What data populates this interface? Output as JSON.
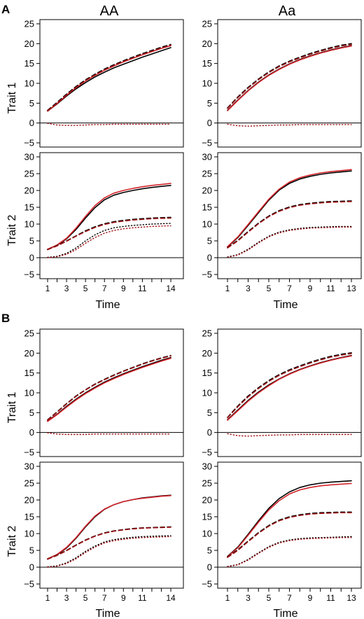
{
  "panel_labels": [
    "A",
    "B"
  ],
  "column_titles": [
    "AA",
    "Aa"
  ],
  "row_labels": [
    "Trait 1",
    "Trait 2"
  ],
  "xlabel": "Time",
  "colors": {
    "black": "#000000",
    "red": "#d2232a",
    "darkred": "#a01014",
    "axis": "#000000"
  },
  "chart_data": [
    {
      "type": "line",
      "panel": "A",
      "column": "AA",
      "trait": "Trait 1",
      "ylim": [
        -5,
        25
      ],
      "yticks": [
        -5,
        0,
        5,
        10,
        15,
        20,
        25
      ],
      "x": [
        1,
        2,
        3,
        4,
        5,
        6,
        7,
        8,
        9,
        10,
        11,
        12,
        13,
        14
      ],
      "xtick_labels": [],
      "series": [
        {
          "style": "solid",
          "color": "black",
          "values": [
            3,
            4.8,
            6.8,
            8.6,
            10.2,
            11.6,
            12.8,
            13.9,
            14.8,
            15.7,
            16.6,
            17.4,
            18.2,
            19.0
          ]
        },
        {
          "style": "solid",
          "color": "red",
          "values": [
            3,
            4.9,
            7.0,
            8.9,
            10.6,
            12.0,
            13.3,
            14.4,
            15.4,
            16.3,
            17.2,
            18.0,
            18.8,
            19.5
          ]
        },
        {
          "style": "dashed",
          "color": "black",
          "values": [
            3.2,
            5.2,
            7.3,
            9.2,
            10.9,
            12.3,
            13.6,
            14.7,
            15.7,
            16.6,
            17.5,
            18.3,
            19.1,
            19.8
          ]
        },
        {
          "style": "dashed",
          "color": "darkred",
          "values": [
            3.1,
            5.0,
            7.1,
            9.0,
            10.7,
            12.1,
            13.4,
            14.5,
            15.5,
            16.4,
            17.3,
            18.1,
            18.9,
            19.6
          ]
        },
        {
          "style": "dotted",
          "color": "darkred",
          "values": [
            -0.1,
            -0.5,
            -0.6,
            -0.6,
            -0.5,
            -0.4,
            -0.4,
            -0.3,
            -0.3,
            -0.3,
            -0.3,
            -0.3,
            -0.3,
            -0.3
          ]
        }
      ]
    },
    {
      "type": "line",
      "panel": "A",
      "column": "Aa",
      "trait": "Trait 1",
      "ylim": [
        -5,
        25
      ],
      "yticks": [
        -5,
        0,
        5,
        10,
        15,
        20,
        25
      ],
      "x": [
        1,
        2,
        3,
        4,
        5,
        6,
        7,
        8,
        9,
        10,
        11,
        12,
        13
      ],
      "xtick_labels": [],
      "series": [
        {
          "style": "solid",
          "color": "black",
          "values": [
            3.2,
            5.8,
            8.2,
            10.3,
            12.1,
            13.6,
            14.9,
            16.0,
            16.9,
            17.7,
            18.4,
            19.0,
            19.5
          ]
        },
        {
          "style": "solid",
          "color": "red",
          "values": [
            3.1,
            5.7,
            8.1,
            10.2,
            12.0,
            13.5,
            14.8,
            15.9,
            16.8,
            17.6,
            18.3,
            18.9,
            19.4
          ]
        },
        {
          "style": "dashed",
          "color": "black",
          "values": [
            3.8,
            6.6,
            9.0,
            11.1,
            12.9,
            14.4,
            15.6,
            16.6,
            17.5,
            18.3,
            19.0,
            19.6,
            20.0
          ]
        },
        {
          "style": "dashed",
          "color": "darkred",
          "values": [
            3.7,
            6.4,
            8.8,
            10.9,
            12.7,
            14.2,
            15.4,
            16.4,
            17.3,
            18.1,
            18.8,
            19.4,
            19.8
          ]
        },
        {
          "style": "dotted",
          "color": "darkred",
          "values": [
            -0.3,
            -0.7,
            -0.8,
            -0.7,
            -0.6,
            -0.5,
            -0.5,
            -0.4,
            -0.4,
            -0.4,
            -0.4,
            -0.4,
            -0.4
          ]
        }
      ]
    },
    {
      "type": "line",
      "panel": "A",
      "column": "AA",
      "trait": "Trait 2",
      "ylim": [
        -5,
        30
      ],
      "yticks": [
        -5,
        0,
        5,
        10,
        15,
        20,
        25,
        30
      ],
      "x": [
        1,
        2,
        3,
        4,
        5,
        6,
        7,
        8,
        9,
        10,
        11,
        12,
        13,
        14
      ],
      "xtick_labels": [
        "1",
        "3",
        "5",
        "7",
        "9",
        "11",
        "14"
      ],
      "series": [
        {
          "style": "solid",
          "color": "black",
          "values": [
            2.5,
            3.7,
            5.6,
            8.4,
            11.8,
            14.9,
            17.2,
            18.6,
            19.4,
            20.0,
            20.5,
            20.9,
            21.2,
            21.5
          ]
        },
        {
          "style": "solid",
          "color": "red",
          "values": [
            2.5,
            3.8,
            5.8,
            8.8,
            12.3,
            15.5,
            17.8,
            19.2,
            20.0,
            20.6,
            21.1,
            21.5,
            21.8,
            22.1
          ]
        },
        {
          "style": "dashed",
          "color": "black",
          "values": [
            2.4,
            3.6,
            5.0,
            6.5,
            8.0,
            9.2,
            10.1,
            10.7,
            11.1,
            11.4,
            11.6,
            11.8,
            11.9,
            12.0
          ]
        },
        {
          "style": "dashed",
          "color": "darkred",
          "values": [
            2.4,
            3.5,
            4.9,
            6.4,
            7.8,
            9.0,
            9.9,
            10.5,
            10.9,
            11.2,
            11.4,
            11.6,
            11.7,
            11.8
          ]
        },
        {
          "style": "dotted",
          "color": "black",
          "values": [
            0.1,
            0.4,
            1.3,
            2.9,
            5.0,
            6.8,
            8.1,
            8.9,
            9.3,
            9.6,
            9.8,
            10.0,
            10.1,
            10.2
          ]
        },
        {
          "style": "dotted",
          "color": "darkred",
          "values": [
            0.0,
            0.3,
            1.0,
            2.4,
            4.3,
            6.0,
            7.3,
            8.1,
            8.6,
            8.9,
            9.1,
            9.3,
            9.4,
            9.5
          ]
        }
      ]
    },
    {
      "type": "line",
      "panel": "A",
      "column": "Aa",
      "trait": "Trait 2",
      "ylim": [
        -5,
        30
      ],
      "yticks": [
        -5,
        0,
        5,
        10,
        15,
        20,
        25,
        30
      ],
      "x": [
        1,
        2,
        3,
        4,
        5,
        6,
        7,
        8,
        9,
        10,
        11,
        12,
        13
      ],
      "xtick_labels": [
        "1",
        "3",
        "5",
        "7",
        "9",
        "11",
        "13"
      ],
      "series": [
        {
          "style": "solid",
          "color": "black",
          "values": [
            3.2,
            6.0,
            9.6,
            13.4,
            17.1,
            20.1,
            22.1,
            23.4,
            24.2,
            24.8,
            25.2,
            25.5,
            25.8
          ]
        },
        {
          "style": "solid",
          "color": "red",
          "values": [
            3.3,
            6.2,
            9.9,
            13.7,
            17.4,
            20.4,
            22.5,
            23.8,
            24.6,
            25.2,
            25.6,
            25.9,
            26.2
          ]
        },
        {
          "style": "dashed",
          "color": "black",
          "values": [
            3.0,
            5.2,
            7.8,
            10.3,
            12.4,
            14.0,
            15.1,
            15.8,
            16.2,
            16.5,
            16.7,
            16.8,
            16.9
          ]
        },
        {
          "style": "dashed",
          "color": "darkred",
          "values": [
            2.9,
            5.0,
            7.6,
            10.1,
            12.2,
            13.8,
            14.9,
            15.6,
            16.0,
            16.3,
            16.5,
            16.6,
            16.7
          ]
        },
        {
          "style": "dotted",
          "color": "black",
          "values": [
            0.2,
            0.9,
            2.5,
            4.6,
            6.4,
            7.6,
            8.3,
            8.7,
            9.0,
            9.1,
            9.2,
            9.3,
            9.3
          ]
        },
        {
          "style": "dotted",
          "color": "darkred",
          "values": [
            0.1,
            0.8,
            2.3,
            4.4,
            6.2,
            7.4,
            8.1,
            8.5,
            8.8,
            8.9,
            9.0,
            9.1,
            9.1
          ]
        }
      ]
    },
    {
      "type": "line",
      "panel": "B",
      "column": "AA",
      "trait": "Trait 1",
      "ylim": [
        -5,
        25
      ],
      "yticks": [
        -5,
        0,
        5,
        10,
        15,
        20,
        25
      ],
      "x": [
        1,
        2,
        3,
        4,
        5,
        6,
        7,
        8,
        9,
        10,
        11,
        12,
        13,
        14
      ],
      "xtick_labels": [],
      "series": [
        {
          "style": "solid",
          "color": "black",
          "values": [
            2.9,
            4.6,
            6.6,
            8.4,
            10.0,
            11.4,
            12.7,
            13.8,
            14.8,
            15.7,
            16.6,
            17.4,
            18.2,
            18.9
          ]
        },
        {
          "style": "solid",
          "color": "red",
          "values": [
            2.8,
            4.5,
            6.4,
            8.2,
            9.8,
            11.2,
            12.5,
            13.6,
            14.6,
            15.5,
            16.4,
            17.2,
            18.0,
            18.7
          ]
        },
        {
          "style": "dashed",
          "color": "black",
          "values": [
            3.2,
            5.2,
            7.3,
            9.2,
            10.8,
            12.2,
            13.4,
            14.5,
            15.5,
            16.4,
            17.3,
            18.1,
            18.8,
            19.4
          ]
        },
        {
          "style": "dashed",
          "color": "darkred",
          "values": [
            3.1,
            5.1,
            7.2,
            9.1,
            10.7,
            12.1,
            13.3,
            14.4,
            15.4,
            16.3,
            17.2,
            18.0,
            18.7,
            19.3
          ]
        },
        {
          "style": "dotted",
          "color": "darkred",
          "values": [
            -0.1,
            -0.4,
            -0.5,
            -0.5,
            -0.5,
            -0.4,
            -0.4,
            -0.4,
            -0.4,
            -0.4,
            -0.4,
            -0.4,
            -0.4,
            -0.4
          ]
        }
      ]
    },
    {
      "type": "line",
      "panel": "B",
      "column": "Aa",
      "trait": "Trait 1",
      "ylim": [
        -5,
        25
      ],
      "yticks": [
        -5,
        0,
        5,
        10,
        15,
        20,
        25
      ],
      "x": [
        1,
        2,
        3,
        4,
        5,
        6,
        7,
        8,
        9,
        10,
        11,
        12,
        13
      ],
      "xtick_labels": [],
      "series": [
        {
          "style": "solid",
          "color": "black",
          "values": [
            3.2,
            5.7,
            8.1,
            10.2,
            12.0,
            13.5,
            14.8,
            15.9,
            16.8,
            17.6,
            18.3,
            18.9,
            19.4
          ]
        },
        {
          "style": "solid",
          "color": "red",
          "values": [
            3.1,
            5.5,
            7.9,
            10.0,
            11.8,
            13.4,
            14.7,
            15.8,
            16.7,
            17.5,
            18.2,
            18.8,
            19.3
          ]
        },
        {
          "style": "dashed",
          "color": "black",
          "values": [
            3.8,
            6.7,
            9.2,
            11.3,
            13.1,
            14.6,
            15.8,
            16.8,
            17.7,
            18.5,
            19.2,
            19.7,
            20.1
          ]
        },
        {
          "style": "dashed",
          "color": "darkred",
          "values": [
            3.7,
            6.5,
            9.0,
            11.1,
            12.9,
            14.4,
            15.6,
            16.6,
            17.5,
            18.3,
            19.0,
            19.5,
            19.9
          ]
        },
        {
          "style": "dotted",
          "color": "darkred",
          "values": [
            -0.3,
            -0.8,
            -0.9,
            -0.8,
            -0.7,
            -0.6,
            -0.6,
            -0.5,
            -0.5,
            -0.5,
            -0.5,
            -0.5,
            -0.5
          ]
        }
      ]
    },
    {
      "type": "line",
      "panel": "B",
      "column": "AA",
      "trait": "Trait 2",
      "ylim": [
        -5,
        30
      ],
      "yticks": [
        -5,
        0,
        5,
        10,
        15,
        20,
        25,
        30
      ],
      "x": [
        1,
        2,
        3,
        4,
        5,
        6,
        7,
        8,
        9,
        10,
        11,
        12,
        13,
        14
      ],
      "xtick_labels": [
        "1",
        "3",
        "5",
        "7",
        "9",
        "11",
        "14"
      ],
      "series": [
        {
          "style": "solid",
          "color": "black",
          "values": [
            2.5,
            3.7,
            5.7,
            8.6,
            12.0,
            15.0,
            17.2,
            18.6,
            19.5,
            20.1,
            20.6,
            20.9,
            21.2,
            21.4
          ]
        },
        {
          "style": "solid",
          "color": "red",
          "values": [
            2.5,
            3.8,
            5.9,
            8.8,
            12.2,
            15.2,
            17.3,
            18.6,
            19.5,
            20.1,
            20.5,
            20.8,
            21.1,
            21.3
          ]
        },
        {
          "style": "dashed",
          "color": "black",
          "values": [
            2.4,
            3.6,
            5.0,
            6.6,
            8.1,
            9.3,
            10.2,
            10.8,
            11.2,
            11.5,
            11.7,
            11.8,
            11.9,
            12.0
          ]
        },
        {
          "style": "dashed",
          "color": "darkred",
          "values": [
            2.4,
            3.5,
            4.9,
            6.5,
            8.0,
            9.2,
            10.1,
            10.7,
            11.1,
            11.4,
            11.6,
            11.7,
            11.8,
            11.9
          ]
        },
        {
          "style": "dotted",
          "color": "black",
          "values": [
            0.1,
            0.4,
            1.3,
            2.8,
            4.7,
            6.3,
            7.5,
            8.2,
            8.6,
            8.9,
            9.1,
            9.2,
            9.3,
            9.4
          ]
        },
        {
          "style": "dotted",
          "color": "darkred",
          "values": [
            0.0,
            0.3,
            1.1,
            2.5,
            4.4,
            6.0,
            7.2,
            7.9,
            8.3,
            8.6,
            8.8,
            8.9,
            9.0,
            9.1
          ]
        }
      ]
    },
    {
      "type": "line",
      "panel": "B",
      "column": "Aa",
      "trait": "Trait 2",
      "ylim": [
        -5,
        30
      ],
      "yticks": [
        -5,
        0,
        5,
        10,
        15,
        20,
        25,
        30
      ],
      "x": [
        1,
        2,
        3,
        4,
        5,
        6,
        7,
        8,
        9,
        10,
        11,
        12,
        13
      ],
      "xtick_labels": [
        "1",
        "3",
        "5",
        "7",
        "9",
        "11",
        "13"
      ],
      "series": [
        {
          "style": "solid",
          "color": "black",
          "values": [
            3.2,
            6.0,
            9.8,
            13.8,
            17.5,
            20.4,
            22.4,
            23.7,
            24.5,
            25.0,
            25.3,
            25.5,
            25.7
          ]
        },
        {
          "style": "solid",
          "color": "red",
          "values": [
            3.1,
            5.8,
            9.5,
            13.4,
            17.0,
            19.8,
            21.8,
            23.0,
            23.7,
            24.2,
            24.5,
            24.7,
            24.9
          ]
        },
        {
          "style": "dashed",
          "color": "black",
          "values": [
            3.0,
            5.2,
            7.8,
            10.3,
            12.4,
            14.0,
            15.0,
            15.6,
            16.0,
            16.2,
            16.3,
            16.4,
            16.4
          ]
        },
        {
          "style": "dashed",
          "color": "darkred",
          "values": [
            2.9,
            5.0,
            7.6,
            10.1,
            12.2,
            13.8,
            14.8,
            15.4,
            15.8,
            16.0,
            16.1,
            16.2,
            16.2
          ]
        },
        {
          "style": "dotted",
          "color": "black",
          "values": [
            0.2,
            0.8,
            2.3,
            4.3,
            6.1,
            7.4,
            8.1,
            8.5,
            8.7,
            8.8,
            8.9,
            9.0,
            9.1
          ]
        },
        {
          "style": "dotted",
          "color": "darkred",
          "values": [
            0.1,
            0.7,
            2.1,
            4.1,
            5.9,
            7.2,
            7.9,
            8.3,
            8.5,
            8.6,
            8.7,
            8.8,
            8.8
          ]
        }
      ]
    }
  ]
}
